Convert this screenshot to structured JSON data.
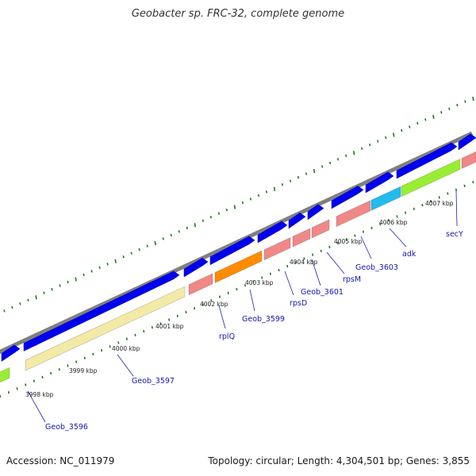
{
  "title": "Geobacter sp. FRC-32, complete genome",
  "footer": {
    "accession": "Accession: NC_011979",
    "summary": "Topology: circular; Length: 4,304,501 bp; Genes: 3,855"
  },
  "colors": {
    "backbone": "#808080",
    "forward_cds": "#0000ee",
    "ribosomal": "#f08888",
    "yellow_gene": "#f2eaa6",
    "orange_gene": "#ff8c00",
    "green_gene": "#99ee33",
    "cyan_gene": "#22bbee",
    "tick_dots": "#227722",
    "label_text": "#1515b0"
  },
  "map_data": {
    "kbp_ticks": [
      "3998 kbp",
      "3999 kbp",
      "4000 kbp",
      "4001 kbp",
      "4002 kbp",
      "4003 kbp",
      "4004 kbp",
      "4005 kbp",
      "4006 kbp",
      "4007 kbp"
    ],
    "gene_labels": [
      "Geob_3596",
      "Geob_3597",
      "rplQ",
      "Geob_3599",
      "rpsD",
      "Geob_3601",
      "rpsM",
      "Geob_3603",
      "adk",
      "secY"
    ]
  }
}
